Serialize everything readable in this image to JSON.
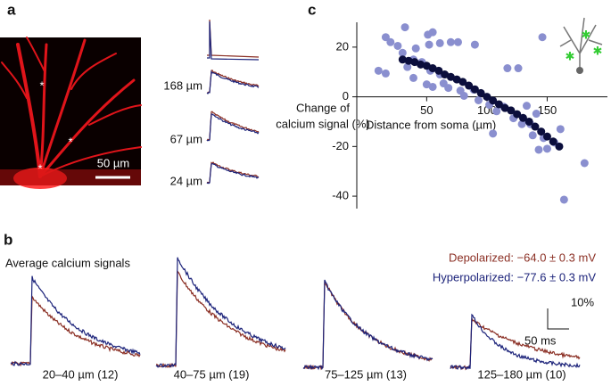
{
  "panel_a": {
    "label": "a",
    "markers": [
      "*",
      "*",
      "*"
    ],
    "scale_bar": "50 µm",
    "trace_labels": [
      "168 µm",
      "67 µm",
      "24 µm"
    ]
  },
  "panel_b": {
    "label": "b",
    "title": "Average calcium signals",
    "legend": [
      {
        "name": "Depolarized: −64.0 ± 0.3 mV",
        "color": "#8b2f24"
      },
      {
        "name": "Hyperpolarized: −77.6 ± 0.3 mV",
        "color": "#1c237a"
      }
    ],
    "scale_labels": [
      "10%",
      "50 ms"
    ],
    "groups": [
      "20–40 µm (12)",
      "40–75 µm (19)",
      "75–125 µm (13)",
      "125–180 µm (10)"
    ]
  },
  "chart_data": {
    "type": "scatter",
    "panel_label": "c",
    "xlabel": "Distance from soma (µm)",
    "ylabel": [
      "Change of",
      "calcium signal (%)"
    ],
    "xlim": [
      -8,
      200
    ],
    "ylim": [
      -45,
      30
    ],
    "xticks": [
      50,
      100,
      150
    ],
    "yticks": [
      -40,
      -20,
      0,
      20
    ],
    "series": [
      {
        "color": "#8a8fcf",
        "x": [
          16,
          20,
          32,
          26,
          30,
          41,
          51,
          55,
          52,
          61,
          70,
          76,
          90,
          117,
          126,
          146,
          34,
          39,
          46,
          53,
          61,
          39,
          50,
          55,
          64,
          68,
          78,
          81,
          89,
          93,
          102,
          108,
          114,
          122,
          133,
          141,
          129,
          136,
          105,
          138,
          147,
          150,
          143,
          156,
          161,
          181,
          164,
          16,
          10
        ],
        "values": [
          24,
          22,
          28,
          20.5,
          17.7,
          19.5,
          25,
          26,
          21,
          21.6,
          22,
          22,
          21,
          11.5,
          11.5,
          24,
          12,
          15,
          14,
          10.5,
          9,
          7.6,
          5,
          4,
          5.4,
          3.6,
          2.5,
          0.4,
          2.9,
          -1.4,
          -3.2,
          -5.8,
          -4,
          -8.6,
          -3.6,
          -6.8,
          -11,
          -11,
          -14.8,
          -15.5,
          -16.6,
          -20.9,
          -21.3,
          -18.4,
          -13,
          -26.7,
          -41.4,
          9.4,
          10.5
        ]
      },
      {
        "color": "#0b0e3c",
        "x": [
          30,
          35,
          40,
          45,
          50,
          55,
          60,
          65,
          70,
          75,
          80,
          85,
          90,
          95,
          100,
          105,
          110,
          115,
          120,
          125,
          130,
          135,
          140,
          145,
          150,
          155,
          160
        ],
        "values": [
          15,
          14.5,
          14,
          13,
          12.5,
          11.5,
          10.5,
          9,
          8,
          7,
          6,
          4.5,
          3,
          1.5,
          0,
          -1.5,
          -3,
          -4.5,
          -5.5,
          -7,
          -8.5,
          -10,
          -12,
          -14,
          -16,
          -18,
          -20
        ]
      }
    ]
  }
}
